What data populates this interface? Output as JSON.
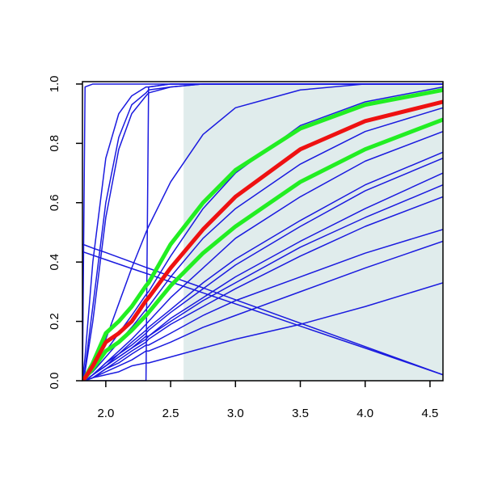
{
  "chart_data": {
    "type": "line",
    "x": [
      1.82,
      1.84,
      1.9,
      2.0,
      2.1,
      2.2,
      2.31,
      2.33,
      2.5,
      2.75,
      3.0,
      3.5,
      4.0,
      4.6
    ],
    "xlim": [
      1.82,
      4.6
    ],
    "ylim": [
      0,
      1.008
    ],
    "xticks": [
      {
        "value": 2.0,
        "label": "2.0"
      },
      {
        "value": 2.5,
        "label": "2.5"
      },
      {
        "value": 3.0,
        "label": "3.0"
      },
      {
        "value": 3.5,
        "label": "3.5"
      },
      {
        "value": 4.0,
        "label": "4.0"
      },
      {
        "value": 4.5,
        "label": "4.5"
      }
    ],
    "yticks": [
      {
        "value": 0.0,
        "label": "0.0"
      },
      {
        "value": 0.2,
        "label": "0.2"
      },
      {
        "value": 0.4,
        "label": "0.4"
      },
      {
        "value": 0.6,
        "label": "0.6"
      },
      {
        "value": 0.8,
        "label": "0.8"
      },
      {
        "value": 1.0,
        "label": "1.0"
      }
    ],
    "shaded_region": {
      "x": [
        2.6,
        4.6
      ],
      "y": [
        0,
        1
      ],
      "color": "#e0ecec"
    },
    "series": [
      {
        "color": "#1a1adf",
        "line_width": 1.5,
        "values": [
          0,
          0.99,
          1,
          1,
          1,
          1,
          1,
          1,
          1,
          1,
          1,
          1,
          1,
          1
        ]
      },
      {
        "color": "#1a1adf",
        "line_width": 1.5,
        "values": [
          0,
          0,
          0,
          0,
          0,
          0,
          0,
          0.99,
          1,
          1,
          1,
          1,
          1,
          1
        ]
      },
      {
        "color": "#1a1adf",
        "line_width": 1.5,
        "values": [
          0,
          0.08,
          0.4,
          0.75,
          0.9,
          0.96,
          0.99,
          0.99,
          1,
          1,
          1,
          1,
          1,
          1
        ]
      },
      {
        "color": "#1a1adf",
        "line_width": 1.5,
        "values": [
          0,
          0.04,
          0.25,
          0.6,
          0.82,
          0.93,
          0.97,
          0.98,
          0.99,
          1,
          1,
          1,
          1,
          1
        ]
      },
      {
        "color": "#1a1adf",
        "line_width": 1.5,
        "values": [
          0,
          0.03,
          0.2,
          0.55,
          0.78,
          0.9,
          0.96,
          0.97,
          0.99,
          1,
          1,
          1,
          1,
          1
        ]
      },
      {
        "color": "#1a1adf",
        "line_width": 1.5,
        "values": [
          0,
          0.01,
          0.05,
          0.14,
          0.26,
          0.38,
          0.5,
          0.52,
          0.67,
          0.83,
          0.92,
          0.98,
          1,
          1
        ]
      },
      {
        "color": "#1a1adf",
        "line_width": 1.5,
        "values": [
          0,
          0.01,
          0.04,
          0.1,
          0.16,
          0.22,
          0.29,
          0.3,
          0.42,
          0.58,
          0.7,
          0.86,
          0.94,
          0.99
        ]
      },
      {
        "color": "#1a1adf",
        "line_width": 1.5,
        "values": [
          0,
          0.01,
          0.03,
          0.08,
          0.13,
          0.18,
          0.24,
          0.25,
          0.35,
          0.48,
          0.58,
          0.73,
          0.84,
          0.92
        ]
      },
      {
        "color": "#1a1adf",
        "line_width": 1.5,
        "values": [
          0,
          0,
          0.02,
          0.06,
          0.1,
          0.14,
          0.19,
          0.2,
          0.28,
          0.38,
          0.48,
          0.62,
          0.74,
          0.84
        ]
      },
      {
        "color": "#1a1adf",
        "line_width": 1.5,
        "values": [
          0,
          0,
          0.02,
          0.06,
          0.09,
          0.13,
          0.17,
          0.18,
          0.24,
          0.33,
          0.41,
          0.54,
          0.66,
          0.77
        ]
      },
      {
        "color": "#1a1adf",
        "line_width": 1.5,
        "values": [
          0,
          0,
          0.02,
          0.05,
          0.09,
          0.12,
          0.16,
          0.17,
          0.23,
          0.31,
          0.39,
          0.52,
          0.64,
          0.75
        ]
      },
      {
        "color": "#1a1adf",
        "line_width": 1.5,
        "values": [
          0,
          0,
          0.02,
          0.05,
          0.08,
          0.11,
          0.15,
          0.15,
          0.21,
          0.28,
          0.35,
          0.47,
          0.58,
          0.7
        ]
      },
      {
        "color": "#1a1adf",
        "line_width": 1.5,
        "values": [
          0,
          0,
          0.02,
          0.05,
          0.08,
          0.11,
          0.14,
          0.15,
          0.2,
          0.27,
          0.33,
          0.45,
          0.55,
          0.66
        ]
      },
      {
        "color": "#1a1adf",
        "line_width": 1.5,
        "values": [
          0,
          0,
          0.01,
          0.04,
          0.07,
          0.1,
          0.13,
          0.14,
          0.19,
          0.25,
          0.31,
          0.42,
          0.52,
          0.62
        ]
      },
      {
        "color": "#1a1adf",
        "line_width": 1.5,
        "values": [
          0,
          0,
          0.01,
          0.04,
          0.06,
          0.09,
          0.12,
          0.12,
          0.16,
          0.22,
          0.27,
          0.35,
          0.43,
          0.51
        ]
      },
      {
        "color": "#1a1adf",
        "line_width": 1.5,
        "values": [
          0,
          0,
          0.01,
          0.03,
          0.05,
          0.07,
          0.1,
          0.1,
          0.13,
          0.18,
          0.22,
          0.3,
          0.38,
          0.47
        ]
      },
      {
        "color": "#1a1adf",
        "line_width": 1.5,
        "values": [
          0,
          0,
          0.01,
          0.02,
          0.03,
          0.05,
          0.06,
          0.06,
          0.08,
          0.11,
          0.14,
          0.19,
          0.25,
          0.33
        ]
      },
      {
        "color": "#1a1adf",
        "line_width": 1.5,
        "values": [
          0.46,
          0.457,
          0.447,
          0.432,
          0.416,
          0.4,
          0.382,
          0.379,
          0.352,
          0.313,
          0.273,
          0.194,
          0.115,
          0.02
        ]
      },
      {
        "color": "#1a1adf",
        "line_width": 1.5,
        "values": [
          0.435,
          0.432,
          0.423,
          0.408,
          0.393,
          0.378,
          0.362,
          0.359,
          0.333,
          0.296,
          0.259,
          0.184,
          0.11,
          0.02
        ]
      },
      {
        "color": "#22ee22",
        "line_width": 5,
        "values": [
          0,
          0.01,
          0.06,
          0.16,
          0.2,
          0.25,
          0.32,
          0.33,
          0.46,
          0.6,
          0.71,
          0.85,
          0.93,
          0.98
        ]
      },
      {
        "color": "#22ee22",
        "line_width": 5,
        "values": [
          0,
          0.01,
          0.04,
          0.1,
          0.13,
          0.17,
          0.22,
          0.23,
          0.32,
          0.43,
          0.52,
          0.67,
          0.78,
          0.88
        ]
      },
      {
        "color": "#ee1111",
        "line_width": 5,
        "values": [
          0,
          0.01,
          0.05,
          0.13,
          0.16,
          0.2,
          0.27,
          0.28,
          0.38,
          0.51,
          0.62,
          0.78,
          0.875,
          0.94
        ]
      }
    ]
  }
}
